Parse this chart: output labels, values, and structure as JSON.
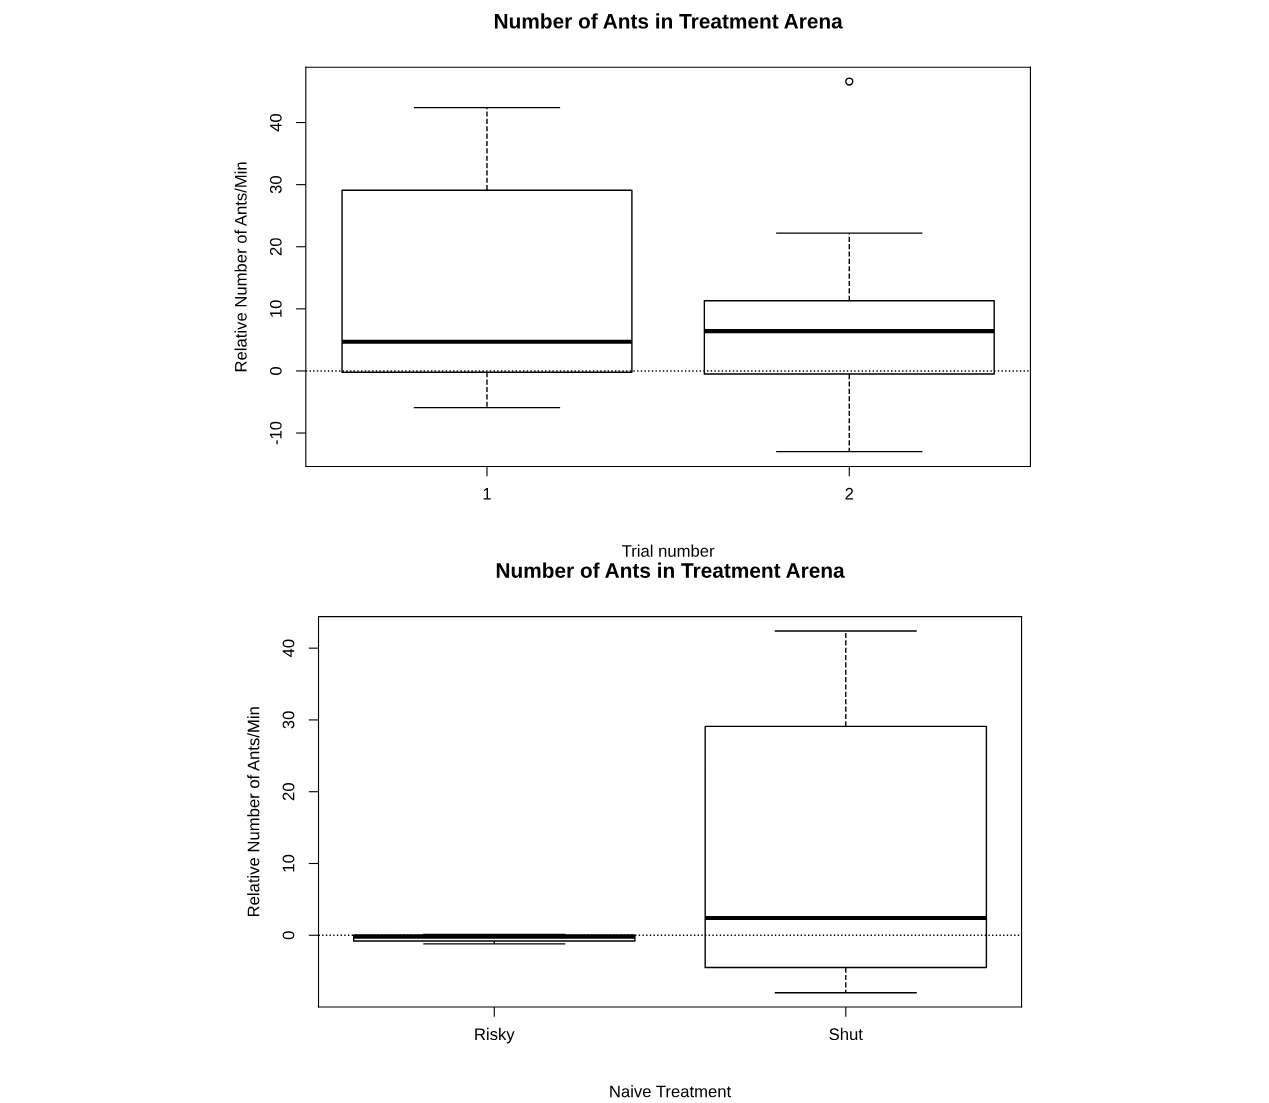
{
  "chart_data": [
    {
      "type": "box",
      "title": "Number of Ants in Treatment Arena",
      "xlabel": "Trial number",
      "ylabel": "Relative Number of Ants/Min",
      "categories": [
        "1",
        "2"
      ],
      "boxes": [
        {
          "low": -5.9,
          "q1": -0.2,
          "median": 4.7,
          "q3": 29.1,
          "high": 42.4
        },
        {
          "low": -13.0,
          "q1": -0.5,
          "median": 6.4,
          "q3": 11.3,
          "high": 22.2,
          "outliers": [
            46.6
          ]
        }
      ],
      "ylim": [
        -15.4,
        48.9
      ],
      "yticks": [
        -10,
        0,
        10,
        20,
        30,
        40
      ],
      "grid": false,
      "ref_lines": [
        {
          "axis": "y",
          "value": 0,
          "line_style": "dotted"
        }
      ]
    },
    {
      "type": "box",
      "title": "Number of Ants in Treatment Arena",
      "xlabel": "Naive Treatment",
      "ylabel": "Relative Number of Ants/Min",
      "categories": [
        "Risky",
        "Shut"
      ],
      "boxes": [
        {
          "low": -1.2,
          "q1": -0.8,
          "median": -0.2,
          "q3": 0.0,
          "high": 0.1
        },
        {
          "low": -8.0,
          "q1": -4.5,
          "median": 2.4,
          "q3": 29.1,
          "high": 42.4
        }
      ],
      "ylim": [
        -10.0,
        44.4
      ],
      "yticks": [
        0,
        10,
        20,
        30,
        40
      ],
      "grid": false,
      "ref_lines": [
        {
          "axis": "y",
          "value": 0,
          "line_style": "dotted"
        }
      ]
    }
  ]
}
